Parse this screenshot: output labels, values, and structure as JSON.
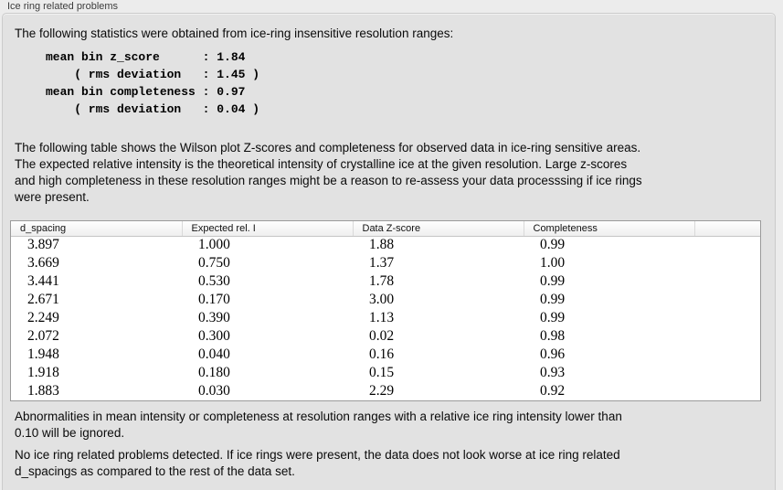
{
  "panel": {
    "title": "Ice ring related problems"
  },
  "stats": {
    "intro": "The following statistics were obtained from ice-ring insensitive resolution ranges:",
    "mono_block": "mean bin z_score      : 1.84\n    ( rms deviation   : 1.45 )\nmean bin completeness : 0.97\n    ( rms deviation   : 0.04 )",
    "mean_bin_z_score": "1.84",
    "z_score_rms_deviation": "1.45",
    "mean_bin_completeness": "0.97",
    "completeness_rms_deviation": "0.04"
  },
  "table_intro": "The following table shows the Wilson plot Z-scores and completeness for observed data in ice-ring sensitive areas.\nThe expected relative intensity is the theoretical intensity of crystalline ice at the given resolution. Large z-scores\nand high completeness in these resolution ranges might be a reason to re-assess your data processsing if ice rings\nwere present.",
  "table": {
    "columns": [
      "d_spacing",
      "Expected rel. I",
      "Data Z-score",
      "Completeness"
    ],
    "rows": [
      [
        "3.897",
        "1.000",
        "1.88",
        "0.99"
      ],
      [
        "3.669",
        "0.750",
        "1.37",
        "1.00"
      ],
      [
        "3.441",
        "0.530",
        "1.78",
        "0.99"
      ],
      [
        "2.671",
        "0.170",
        "3.00",
        "0.99"
      ],
      [
        "2.249",
        "0.390",
        "1.13",
        "0.99"
      ],
      [
        "2.072",
        "0.300",
        "0.02",
        "0.98"
      ],
      [
        "1.948",
        "0.040",
        "0.16",
        "0.96"
      ],
      [
        "1.918",
        "0.180",
        "0.15",
        "0.93"
      ],
      [
        "1.883",
        "0.030",
        "2.29",
        "0.92"
      ]
    ]
  },
  "notes": {
    "ignore_note": "Abnormalities in mean intensity or completeness at resolution ranges with a relative ice ring intensity lower than\n0.10 will be ignored.",
    "conclusion": "No ice ring related problems detected. If ice rings were present, the data does not look worse at ice ring related\nd_spacings as compared to the rest of the data set."
  }
}
